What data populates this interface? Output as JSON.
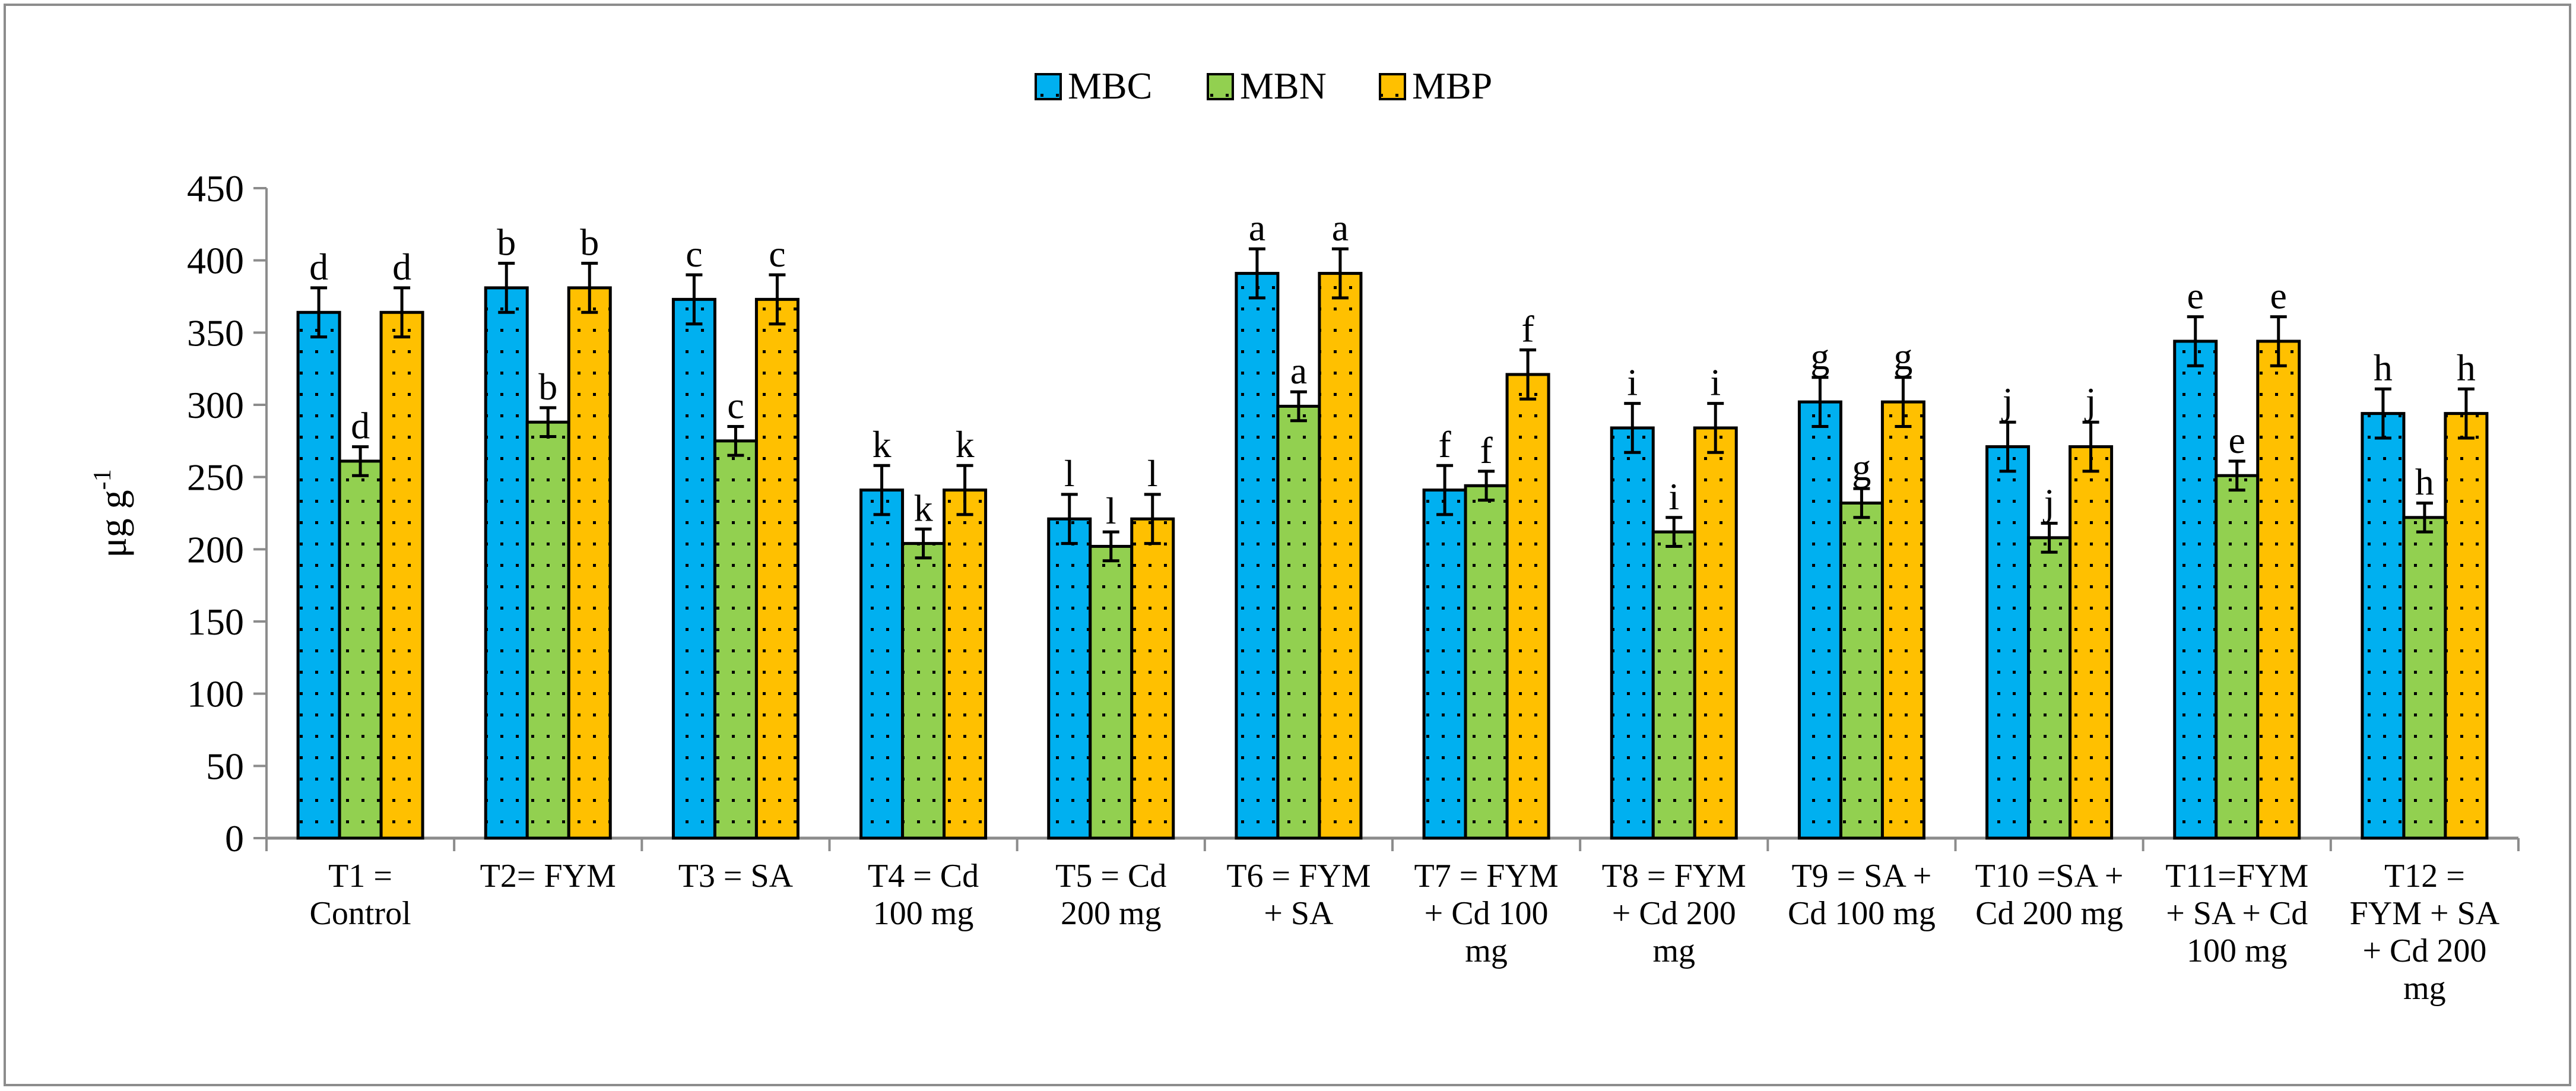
{
  "chart_data": {
    "type": "bar",
    "title": "",
    "xlabel": "",
    "ylabel": "μg g-1",
    "ylabel_main": "μg g",
    "ylabel_sup": "-1",
    "ylim": [
      0,
      450
    ],
    "yticks": [
      0,
      50,
      100,
      150,
      200,
      250,
      300,
      350,
      400,
      450
    ],
    "grid": false,
    "legend_position": "top-center",
    "categories": [
      [
        "T1 =",
        "Control"
      ],
      [
        "T2= FYM"
      ],
      [
        "T3 = SA"
      ],
      [
        "T4 = Cd",
        "100 mg"
      ],
      [
        "T5 = Cd",
        "200 mg"
      ],
      [
        "T6 = FYM",
        "+ SA"
      ],
      [
        "T7 = FYM",
        "+ Cd 100",
        "mg"
      ],
      [
        "T8 = FYM",
        "+ Cd 200",
        "mg"
      ],
      [
        "T9 = SA +",
        "Cd 100 mg"
      ],
      [
        "T10 =SA +",
        "Cd 200 mg"
      ],
      [
        "T11=FYM",
        "+ SA + Cd",
        "100 mg"
      ],
      [
        "T12 =",
        "FYM + SA",
        "+ Cd 200",
        "mg"
      ]
    ],
    "series": [
      {
        "name": "MBC",
        "color": "#00B0F0",
        "values": [
          364,
          381,
          373,
          241,
          221,
          391,
          241,
          284,
          302,
          271,
          344,
          294
        ],
        "errors": [
          17,
          17,
          17,
          17,
          17,
          17,
          17,
          17,
          17,
          17,
          17,
          17
        ],
        "letters": [
          "d",
          "b",
          "c",
          "k",
          "l",
          "a",
          "f",
          "i",
          "g",
          "j",
          "e",
          "h"
        ]
      },
      {
        "name": "MBN",
        "color": "#92D050",
        "values": [
          261,
          288,
          275,
          204,
          202,
          299,
          244,
          212,
          232,
          208,
          251,
          222
        ],
        "errors": [
          10,
          10,
          10,
          10,
          10,
          10,
          10,
          10,
          10,
          10,
          10,
          10
        ],
        "letters": [
          "d",
          "b",
          "c",
          "k",
          "l",
          "a",
          "f",
          "i",
          "g",
          "j",
          "e",
          "h"
        ]
      },
      {
        "name": "MBP",
        "color": "#FFC000",
        "values": [
          364,
          381,
          373,
          241,
          221,
          391,
          321,
          284,
          302,
          271,
          344,
          294
        ],
        "errors": [
          17,
          17,
          17,
          17,
          17,
          17,
          17,
          17,
          17,
          17,
          17,
          17
        ],
        "letters": [
          "d",
          "b",
          "c",
          "k",
          "l",
          "a",
          "f",
          "i",
          "g",
          "j",
          "e",
          "h"
        ]
      }
    ]
  }
}
